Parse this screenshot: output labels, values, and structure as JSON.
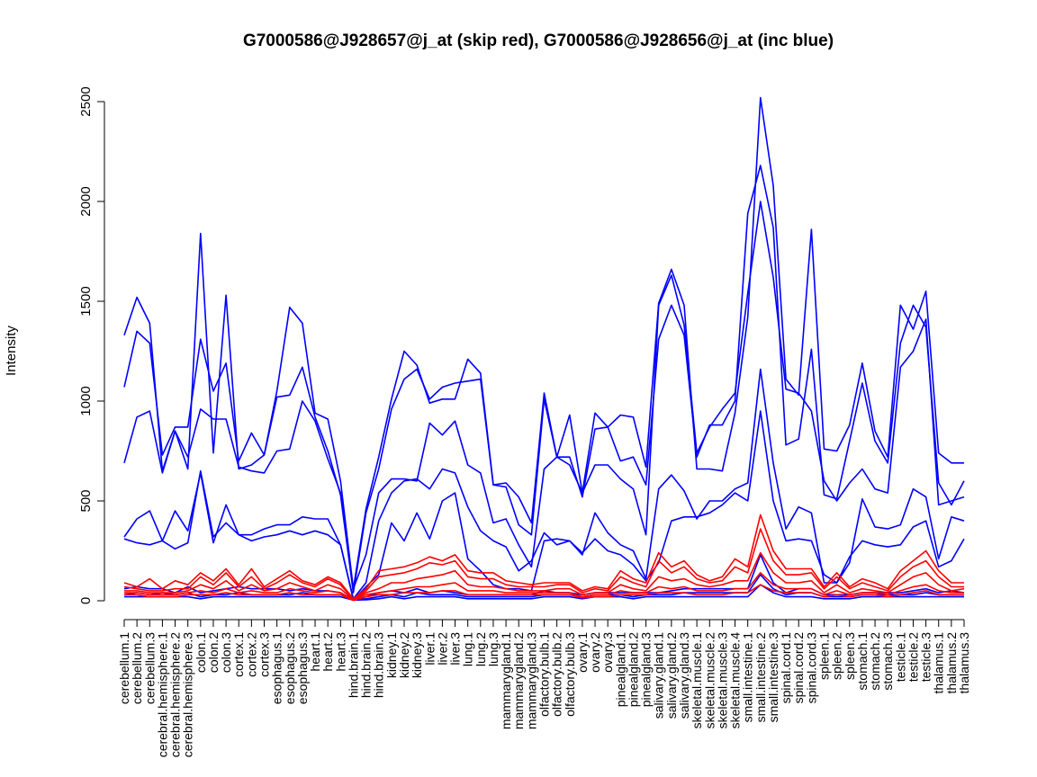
{
  "chart_data": {
    "type": "line",
    "title": "G7000586@J928657@j_at (skip red), G7000586@J928656@j_at (inc blue)",
    "xlabel": "",
    "ylabel": "Intensity",
    "ylim": [
      0,
      2500
    ],
    "yticks": [
      0,
      500,
      1000,
      1500,
      2000,
      2500
    ],
    "grid": false,
    "legend": "none",
    "colors": {
      "skip": "#ff0000",
      "inc": "#0000ff"
    },
    "categories": [
      "cerebellum.1",
      "cerebellum.2",
      "cerebellum.3",
      "cerebral.hemisphere.1",
      "cerebral.hemisphere.2",
      "cerebral.hemisphere.3",
      "colon.1",
      "colon.2",
      "colon.3",
      "cortex.1",
      "cortex.2",
      "cortex.3",
      "esophagus.1",
      "esophagus.2",
      "esophagus.3",
      "heart.1",
      "heart.2",
      "heart.3",
      "hind.brain.1",
      "hind.brain.2",
      "hind.brain.3",
      "kidney.1",
      "kidney.2",
      "kidney.3",
      "liver.1",
      "liver.2",
      "liver.3",
      "lung.1",
      "lung.2",
      "lung.3",
      "mammarygland.1",
      "mammarygland.2",
      "mammarygland.3",
      "olfactory.bulb.1",
      "olfactory.bulb.2",
      "olfactory.bulb.3",
      "ovary.1",
      "ovary.2",
      "ovary.3",
      "pinealgland.1",
      "pinealgland.2",
      "pinealgland.3",
      "salivary.gland.1",
      "salivary.gland.2",
      "salivary.gland.3",
      "skeletal.muscle.1",
      "skeletal.muscle.2",
      "skeletal.muscle.3",
      "skeletal.muscle.4",
      "small.intestine.1",
      "small.intestine.2",
      "small.intestine.3",
      "spinal.cord.1",
      "spinal.cord.2",
      "spinal.cord.3",
      "spleen.1",
      "spleen.2",
      "spleen.3",
      "stomach.1",
      "stomach.2",
      "stomach.3",
      "testicle.1",
      "testicle.2",
      "testicle.3",
      "thalamus.1",
      "thalamus.2",
      "thalamus.3"
    ],
    "series": [
      {
        "group": "inc",
        "values": [
          1330,
          1520,
          1390,
          650,
          850,
          660,
          1840,
          740,
          1530,
          660,
          680,
          730,
          1050,
          1470,
          1390,
          940,
          910,
          600,
          60,
          460,
          720,
          1010,
          1250,
          1180,
          990,
          1010,
          1010,
          1210,
          1140,
          580,
          590,
          520,
          390,
          1040,
          720,
          930,
          540,
          940,
          870,
          930,
          920,
          670,
          1490,
          1660,
          1480,
          660,
          660,
          650,
          940,
          1420,
          2520,
          2080,
          1110,
          1030,
          1860,
          760,
          750,
          880,
          1190,
          850,
          720,
          1480,
          1360,
          1550,
          740,
          690,
          690
        ]
      },
      {
        "group": "inc",
        "values": [
          1070,
          1350,
          1290,
          730,
          870,
          870,
          1310,
          1050,
          1190,
          700,
          840,
          730,
          1020,
          1030,
          1170,
          920,
          750,
          530,
          40,
          440,
          660,
          960,
          1110,
          1160,
          1010,
          1070,
          1090,
          1100,
          1110,
          580,
          570,
          380,
          330,
          1010,
          720,
          720,
          520,
          860,
          870,
          700,
          720,
          580,
          1310,
          1480,
          1330,
          720,
          880,
          880,
          1000,
          1940,
          2180,
          1870,
          780,
          810,
          1260,
          530,
          510,
          800,
          1090,
          800,
          690,
          1290,
          1480,
          1370,
          590,
          480,
          600
        ]
      },
      {
        "group": "inc",
        "values": [
          690,
          920,
          950,
          640,
          850,
          720,
          960,
          910,
          910,
          670,
          650,
          640,
          750,
          760,
          1000,
          900,
          710,
          540,
          60,
          230,
          540,
          610,
          610,
          600,
          890,
          830,
          900,
          680,
          640,
          390,
          410,
          280,
          170,
          660,
          720,
          680,
          540,
          680,
          680,
          610,
          560,
          330,
          1480,
          1630,
          1380,
          740,
          870,
          960,
          1040,
          1540,
          2000,
          1620,
          1060,
          1040,
          950,
          600,
          500,
          590,
          660,
          560,
          540,
          1170,
          1250,
          1410,
          480,
          500,
          520
        ]
      },
      {
        "group": "inc",
        "values": [
          320,
          410,
          450,
          300,
          450,
          350,
          640,
          290,
          480,
          330,
          330,
          360,
          380,
          380,
          420,
          410,
          410,
          280,
          10,
          90,
          400,
          540,
          600,
          610,
          560,
          660,
          640,
          470,
          350,
          300,
          270,
          150,
          200,
          340,
          280,
          300,
          230,
          440,
          340,
          280,
          250,
          110,
          560,
          630,
          550,
          410,
          500,
          500,
          560,
          590,
          1160,
          690,
          360,
          470,
          440,
          90,
          90,
          190,
          510,
          370,
          360,
          380,
          560,
          520,
          210,
          420,
          400
        ]
      },
      {
        "group": "inc",
        "values": [
          310,
          290,
          280,
          300,
          260,
          290,
          650,
          320,
          390,
          330,
          300,
          320,
          330,
          350,
          330,
          350,
          330,
          280,
          5,
          70,
          130,
          390,
          300,
          440,
          310,
          500,
          540,
          210,
          150,
          80,
          60,
          60,
          50,
          300,
          310,
          300,
          240,
          310,
          250,
          230,
          180,
          100,
          190,
          400,
          420,
          420,
          440,
          480,
          540,
          500,
          950,
          500,
          300,
          310,
          300,
          130,
          90,
          220,
          300,
          280,
          270,
          280,
          370,
          400,
          170,
          200,
          310
        ]
      },
      {
        "group": "inc",
        "values": [
          60,
          70,
          60,
          60,
          40,
          70,
          40,
          50,
          60,
          70,
          60,
          60,
          60,
          50,
          60,
          50,
          50,
          40,
          5,
          20,
          40,
          50,
          40,
          60,
          40,
          50,
          40,
          30,
          30,
          30,
          30,
          30,
          30,
          50,
          40,
          40,
          30,
          40,
          40,
          40,
          40,
          40,
          40,
          50,
          60,
          60,
          60,
          60,
          60,
          60,
          230,
          90,
          40,
          60,
          60,
          30,
          30,
          30,
          40,
          40,
          40,
          40,
          50,
          60,
          40,
          50,
          40
        ]
      },
      {
        "group": "inc",
        "values": [
          30,
          40,
          30,
          40,
          30,
          40,
          20,
          30,
          30,
          40,
          30,
          30,
          30,
          30,
          40,
          30,
          30,
          30,
          5,
          10,
          20,
          30,
          20,
          40,
          30,
          30,
          30,
          20,
          20,
          20,
          20,
          20,
          20,
          30,
          30,
          30,
          20,
          30,
          30,
          30,
          20,
          30,
          30,
          30,
          40,
          40,
          40,
          40,
          40,
          40,
          130,
          60,
          30,
          40,
          40,
          20,
          20,
          20,
          30,
          30,
          30,
          30,
          30,
          40,
          30,
          30,
          30
        ]
      },
      {
        "group": "inc",
        "values": [
          20,
          20,
          20,
          20,
          20,
          20,
          10,
          20,
          20,
          20,
          20,
          20,
          20,
          20,
          20,
          20,
          20,
          20,
          3,
          5,
          10,
          20,
          10,
          20,
          20,
          20,
          20,
          10,
          10,
          10,
          10,
          10,
          10,
          20,
          20,
          20,
          10,
          20,
          20,
          20,
          10,
          20,
          20,
          20,
          20,
          20,
          20,
          20,
          20,
          20,
          80,
          40,
          20,
          20,
          20,
          10,
          10,
          10,
          20,
          20,
          20,
          20,
          20,
          20,
          20,
          20,
          20
        ]
      },
      {
        "group": "skip",
        "values": [
          90,
          70,
          110,
          60,
          100,
          80,
          140,
          100,
          160,
          80,
          160,
          70,
          110,
          150,
          100,
          80,
          120,
          90,
          10,
          60,
          150,
          160,
          170,
          190,
          220,
          200,
          230,
          150,
          140,
          140,
          100,
          90,
          80,
          90,
          90,
          90,
          50,
          70,
          60,
          150,
          110,
          90,
          240,
          170,
          200,
          130,
          100,
          120,
          210,
          170,
          430,
          250,
          160,
          160,
          160,
          70,
          140,
          70,
          110,
          90,
          60,
          150,
          200,
          250,
          150,
          90,
          90
        ]
      },
      {
        "group": "skip",
        "values": [
          70,
          60,
          50,
          50,
          60,
          60,
          120,
          80,
          140,
          70,
          120,
          60,
          90,
          130,
          90,
          70,
          110,
          80,
          5,
          50,
          120,
          130,
          140,
          160,
          190,
          180,
          200,
          120,
          110,
          110,
          80,
          70,
          70,
          70,
          80,
          80,
          40,
          60,
          50,
          120,
          90,
          70,
          200,
          140,
          170,
          110,
          90,
          100,
          170,
          140,
          360,
          200,
          130,
          130,
          140,
          60,
          120,
          60,
          90,
          70,
          50,
          120,
          170,
          200,
          120,
          70,
          70
        ]
      },
      {
        "group": "skip",
        "values": [
          50,
          50,
          40,
          40,
          40,
          50,
          80,
          60,
          100,
          50,
          80,
          50,
          60,
          90,
          70,
          50,
          80,
          60,
          5,
          40,
          60,
          90,
          90,
          110,
          120,
          130,
          150,
          80,
          70,
          70,
          60,
          50,
          50,
          50,
          60,
          60,
          30,
          40,
          40,
          80,
          60,
          50,
          120,
          100,
          110,
          80,
          70,
          80,
          100,
          100,
          240,
          140,
          90,
          90,
          100,
          40,
          80,
          40,
          60,
          50,
          40,
          80,
          120,
          140,
          80,
          50,
          60
        ]
      },
      {
        "group": "skip",
        "values": [
          40,
          40,
          30,
          30,
          30,
          40,
          50,
          40,
          60,
          40,
          50,
          40,
          40,
          60,
          50,
          40,
          50,
          40,
          3,
          30,
          40,
          50,
          60,
          70,
          70,
          80,
          90,
          50,
          50,
          50,
          40,
          40,
          40,
          40,
          40,
          40,
          20,
          30,
          30,
          50,
          40,
          40,
          70,
          60,
          70,
          50,
          50,
          50,
          60,
          60,
          140,
          80,
          60,
          60,
          60,
          30,
          50,
          30,
          40,
          40,
          30,
          50,
          70,
          80,
          50,
          40,
          40
        ]
      },
      {
        "group": "skip",
        "values": [
          30,
          30,
          20,
          20,
          20,
          30,
          30,
          30,
          40,
          30,
          30,
          30,
          30,
          40,
          30,
          30,
          30,
          30,
          2,
          20,
          30,
          30,
          40,
          40,
          40,
          50,
          50,
          30,
          30,
          30,
          30,
          30,
          30,
          30,
          30,
          30,
          15,
          20,
          20,
          30,
          30,
          30,
          40,
          40,
          40,
          30,
          30,
          30,
          40,
          40,
          80,
          50,
          40,
          40,
          40,
          20,
          30,
          20,
          30,
          30,
          20,
          30,
          40,
          50,
          30,
          30,
          30
        ]
      }
    ]
  }
}
